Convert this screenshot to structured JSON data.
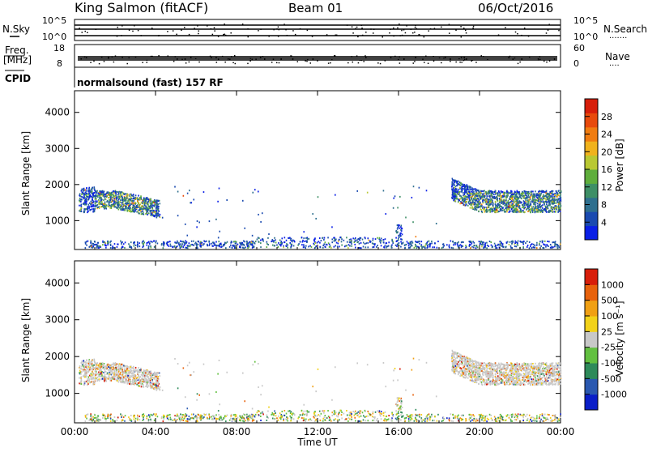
{
  "header": {
    "station": "King Salmon (fitACF)",
    "beam": "Beam 01",
    "date": "06/Oct/2016"
  },
  "noise_panel": {
    "left_label": "N.Sky",
    "right_label": "N.Search",
    "right_dots": "·······",
    "left_ticks": [
      "10^5",
      "10^0"
    ],
    "right_ticks": [
      "10^5",
      "10^0"
    ]
  },
  "freq_panel": {
    "left_label_top": "Freq.",
    "left_label_bottom": "[MHz]",
    "right_label": "Nave",
    "right_dots": "····",
    "left_ticks": [
      18,
      8
    ],
    "right_ticks": [
      60,
      0
    ]
  },
  "cpid": {
    "label": "CPID",
    "program": "normalsound (fast) 157 RF"
  },
  "chart_data": [
    {
      "type": "heatmap",
      "name": "power",
      "ylabel": "Slant Range [km]",
      "ylim": [
        200,
        4600
      ],
      "yticks": [
        1000,
        2000,
        3000,
        4000
      ],
      "colorbar": {
        "label": "Power [dB]",
        "range": [
          0,
          32
        ],
        "ticks": [
          4,
          8,
          12,
          16,
          20,
          24,
          28
        ],
        "colors": [
          "#0a1fe6",
          "#1a4ab0",
          "#2e6f8e",
          "#3e8f66",
          "#5fae3c",
          "#b9c832",
          "#f0b21c",
          "#f07c10",
          "#e84a0c",
          "#d71e0a"
        ]
      },
      "regions": [
        {
          "t0": 0.2,
          "t1": 4.2,
          "r0": 1250,
          "r1": 2200,
          "dominant": "mixed-high"
        },
        {
          "t0": 18.6,
          "t1": 24.0,
          "r0": 1150,
          "r1": 2300,
          "dominant": "mixed-high"
        },
        {
          "t0": 0.5,
          "t1": 24.0,
          "r0": 250,
          "r1": 500,
          "dominant": "low"
        },
        {
          "t0": 15.8,
          "t1": 16.2,
          "r0": 400,
          "r1": 900,
          "dominant": "mixed"
        }
      ]
    },
    {
      "type": "heatmap",
      "name": "velocity",
      "ylabel": "Slant Range [km]",
      "ylim": [
        200,
        4600
      ],
      "yticks": [
        1000,
        2000,
        3000,
        4000
      ],
      "colorbar": {
        "label": "Velocity [m s⁻¹]",
        "tick_labels": [
          "1000",
          "500",
          "100",
          "25",
          "-25",
          "-100",
          "-500",
          "-1000"
        ],
        "colors": [
          "#0a1ec8",
          "#2a58b0",
          "#2e8a5a",
          "#62c040",
          "#c8c8c8",
          "#f2d21a",
          "#f0a014",
          "#e8620c",
          "#d81e0a"
        ]
      }
    }
  ],
  "x_axis": {
    "label": "Time UT",
    "range": [
      0,
      24
    ],
    "ticks": [
      "00:00",
      "04:00",
      "08:00",
      "12:00",
      "16:00",
      "20:00",
      "00:00"
    ]
  },
  "colors": {
    "ink": "#000000",
    "grey": "#c0c0c0"
  }
}
